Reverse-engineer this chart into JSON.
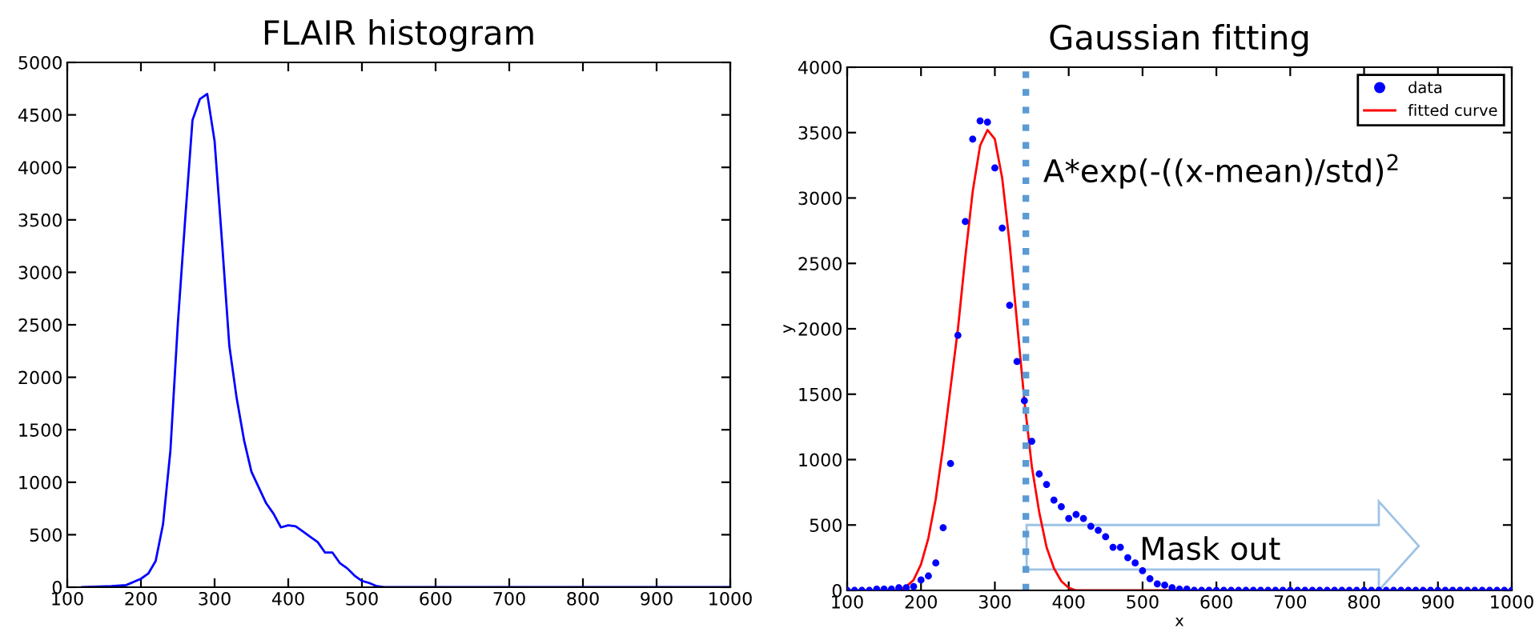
{
  "chart_data": [
    {
      "type": "line",
      "title": "FLAIR histogram",
      "series": [
        {
          "color": "#0000ff",
          "x": [
            120,
            160,
            180,
            200,
            210,
            220,
            230,
            240,
            250,
            260,
            270,
            280,
            290,
            300,
            310,
            320,
            330,
            340,
            350,
            360,
            370,
            380,
            390,
            400,
            410,
            420,
            430,
            440,
            450,
            460,
            470,
            480,
            490,
            500,
            510,
            520,
            530,
            1000
          ],
          "values": [
            0,
            10,
            20,
            80,
            130,
            250,
            600,
            1300,
            2500,
            3500,
            4450,
            4650,
            4700,
            4250,
            3300,
            2300,
            1800,
            1400,
            1100,
            950,
            800,
            700,
            570,
            590,
            580,
            530,
            480,
            430,
            330,
            330,
            230,
            180,
            110,
            60,
            40,
            10,
            0,
            0
          ]
        }
      ],
      "xlim": [
        100,
        1000
      ],
      "xticks": [
        100,
        200,
        300,
        400,
        500,
        600,
        700,
        800,
        900,
        1000
      ],
      "ylim": [
        0,
        5000
      ],
      "yticks": [
        0,
        500,
        1000,
        1500,
        2000,
        2500,
        3000,
        3500,
        4000,
        4500,
        5000
      ],
      "grid": false,
      "legend": false,
      "marker": "none",
      "line_style": "solid"
    },
    {
      "type": "scatter",
      "title": "Gaussian fitting",
      "xlabel": "x",
      "ylabel": "y",
      "series": [
        {
          "name": "data",
          "type": "scatter",
          "color": "#0000ff",
          "marker": "circle",
          "x": [
            100,
            110,
            120,
            130,
            140,
            150,
            160,
            170,
            180,
            190,
            200,
            210,
            220,
            230,
            240,
            250,
            260,
            270,
            280,
            290,
            300,
            310,
            320,
            330,
            340,
            350,
            360,
            370,
            380,
            390,
            400,
            410,
            420,
            430,
            440,
            450,
            460,
            470,
            480,
            490,
            500,
            510,
            520,
            530,
            540,
            550,
            560,
            570,
            580,
            590,
            600,
            610,
            620,
            630,
            640,
            650,
            660,
            670,
            680,
            690,
            700,
            710,
            720,
            730,
            740,
            750,
            760,
            770,
            780,
            790,
            800,
            810,
            820,
            830,
            840,
            850,
            860,
            870,
            880,
            890,
            900,
            910,
            920,
            930,
            940,
            950,
            960,
            970,
            980,
            990,
            1000
          ],
          "values": [
            0,
            0,
            0,
            0,
            10,
            10,
            10,
            20,
            20,
            30,
            80,
            110,
            210,
            480,
            970,
            1950,
            2820,
            3450,
            3590,
            3580,
            3230,
            2770,
            2180,
            1750,
            1450,
            1140,
            890,
            810,
            690,
            640,
            550,
            580,
            550,
            490,
            460,
            410,
            330,
            330,
            250,
            210,
            150,
            90,
            50,
            40,
            20,
            10,
            10,
            0,
            0,
            0,
            0,
            0,
            0,
            0,
            0,
            0,
            0,
            0,
            0,
            0,
            0,
            0,
            0,
            0,
            0,
            0,
            0,
            0,
            0,
            0,
            0,
            0,
            0,
            0,
            0,
            0,
            0,
            0,
            0,
            0,
            0,
            0,
            0,
            0,
            0,
            0,
            0,
            0,
            0,
            0,
            0
          ]
        },
        {
          "name": "fitted curve",
          "type": "line",
          "color": "#ff0000",
          "marker": "none",
          "x": [
            100,
            170,
            180,
            190,
            200,
            210,
            220,
            230,
            240,
            250,
            260,
            270,
            280,
            290,
            300,
            310,
            320,
            330,
            340,
            350,
            360,
            370,
            380,
            390,
            400,
            410,
            1000
          ],
          "values": [
            0,
            0,
            30,
            80,
            200,
            400,
            700,
            1100,
            1550,
            2000,
            2550,
            3050,
            3400,
            3520,
            3450,
            3150,
            2650,
            2050,
            1450,
            950,
            600,
            330,
            170,
            70,
            20,
            0,
            0
          ]
        }
      ],
      "xlim": [
        100,
        1000
      ],
      "xticks": [
        100,
        200,
        300,
        400,
        500,
        600,
        700,
        800,
        900,
        1000
      ],
      "ylim": [
        0,
        4000
      ],
      "yticks": [
        0,
        500,
        1000,
        1500,
        2000,
        2500,
        3000,
        3500,
        4000
      ],
      "ref_lines": [
        {
          "axis": "x",
          "value": 342,
          "color": "#5b9bd5",
          "line_style": "dotted"
        }
      ],
      "annotations": [
        "A*exp(-((x-mean)/std)$^{2}$",
        "Mask out"
      ],
      "grid": false,
      "legend": "top right"
    }
  ]
}
